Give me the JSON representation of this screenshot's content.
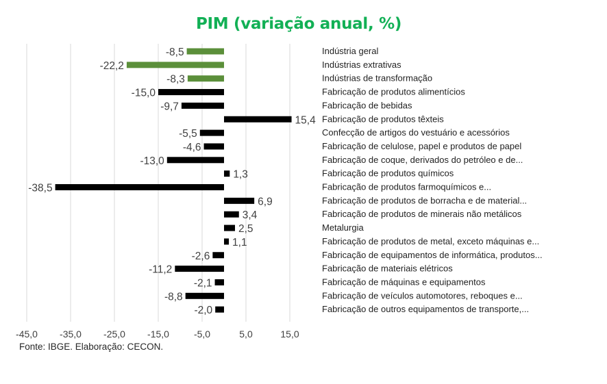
{
  "chart_data": {
    "type": "bar",
    "orientation": "horizontal",
    "title": "PIM (variação anual, %)",
    "categories": [
      "Indústria geral",
      "Indústrias extrativas",
      "Indústrias de transformação",
      "Fabricação de produtos alimentícios",
      "Fabricação de bebidas",
      "Fabricação de produtos têxteis",
      "Confecção de artigos do vestuário e acessórios",
      "Fabricação de celulose, papel e produtos de papel",
      "Fabricação de coque, derivados do petróleo e de...",
      "Fabricação de produtos químicos",
      "Fabricação de produtos farmoquímicos e...",
      "Fabricação de produtos de borracha e de material...",
      "Fabricação de produtos de minerais não metálicos",
      "Metalurgia",
      "Fabricação de produtos de metal, exceto máquinas e...",
      "Fabricação de equipamentos de informática, produtos...",
      "Fabricação de  materiais elétricos",
      "Fabricação de máquinas e equipamentos",
      "Fabricação de veículos automotores, reboques e...",
      "Fabricação de outros equipamentos de transporte,..."
    ],
    "values": [
      -8.5,
      -22.2,
      -8.3,
      -15.0,
      -9.7,
      15.4,
      -5.5,
      -4.6,
      -13.0,
      1.3,
      -38.5,
      6.9,
      3.4,
      2.5,
      1.1,
      -2.6,
      -11.2,
      -2.1,
      -8.8,
      -2.0
    ],
    "value_labels": [
      "-8,5",
      "-22,2",
      "-8,3",
      "-15,0",
      "-9,7",
      "15,4",
      "-5,5",
      "-4,6",
      "-13,0",
      "1,3",
      "-38,5",
      "6,9",
      "3,4",
      "2,5",
      "1,1",
      "-2,6",
      "-11,2",
      "-2,1",
      "-8,8",
      "-2,0"
    ],
    "bar_colors": [
      "#5b8f3a",
      "#5b8f3a",
      "#5b8f3a",
      "#000000",
      "#000000",
      "#000000",
      "#000000",
      "#000000",
      "#000000",
      "#000000",
      "#000000",
      "#000000",
      "#000000",
      "#000000",
      "#000000",
      "#000000",
      "#000000",
      "#000000",
      "#000000",
      "#000000"
    ],
    "x_ticks": [
      -45,
      -35,
      -25,
      -15,
      -5,
      5,
      15
    ],
    "x_tick_labels": [
      "-45,0",
      "-35,0",
      "-25,0",
      "-15,0",
      "-5,0",
      "5,0",
      "15,0"
    ],
    "xlim": [
      -45,
      15
    ],
    "grid": "vertical",
    "legend": "none"
  },
  "colors": {
    "title": "#12b055",
    "highlight_bar": "#5b8f3a",
    "bar": "#000000",
    "grid": "#d9d9d9"
  },
  "footer": {
    "source": "Fonte: IBGE. Elaboração: CECON."
  }
}
